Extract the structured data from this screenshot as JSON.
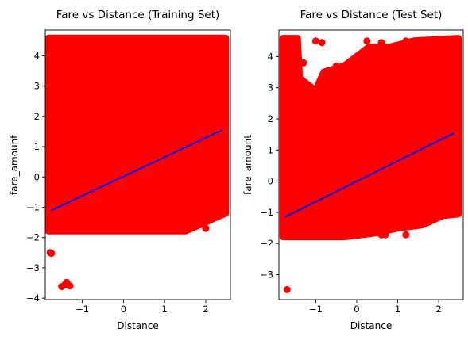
{
  "colors": {
    "scatter": "#ff0000",
    "line": "#0000ff",
    "axes": "#000000",
    "background": "#ffffff"
  },
  "chart_data": [
    {
      "type": "scatter",
      "title": "Fare vs Distance (Training Set)",
      "xlabel": "Distance",
      "ylabel": "fare_amount",
      "xlim": [
        -1.9,
        2.6
      ],
      "ylim": [
        -4.05,
        4.85
      ],
      "xticks": [
        -1,
        0,
        1,
        2
      ],
      "yticks": [
        -4,
        -3,
        -2,
        -1,
        0,
        1,
        2,
        3,
        4
      ],
      "grid": false,
      "series": [
        {
          "type": "scatter",
          "color": "#ff0000",
          "density": "dense cloud of points covering x from -1.8 to 2.45 and y from -1.75 to 4.55",
          "points": [
            [
              -1.78,
              -2.5
            ],
            [
              -1.75,
              -2.52
            ],
            [
              -1.5,
              -3.62
            ],
            [
              -1.42,
              -3.55
            ],
            [
              -1.38,
              -3.48
            ],
            [
              -1.3,
              -3.6
            ],
            [
              -1.8,
              4.5
            ],
            [
              -1.5,
              4.45
            ],
            [
              -1.2,
              4.5
            ],
            [
              -0.8,
              4.4
            ],
            [
              -0.5,
              4.5
            ],
            [
              0.0,
              4.5
            ],
            [
              0.5,
              4.45
            ],
            [
              1.0,
              4.5
            ],
            [
              1.5,
              4.5
            ],
            [
              2.0,
              4.5
            ],
            [
              2.4,
              4.45
            ],
            [
              -1.6,
              4.0
            ],
            [
              -1.0,
              3.9
            ],
            [
              -0.2,
              4.1
            ],
            [
              0.7,
              3.8
            ],
            [
              1.3,
              4.2
            ],
            [
              2.2,
              3.9
            ],
            [
              -1.7,
              -1.7
            ],
            [
              -1.2,
              -1.72
            ],
            [
              -0.6,
              -1.7
            ],
            [
              0.0,
              -1.65
            ],
            [
              0.6,
              -1.7
            ],
            [
              1.1,
              -1.7
            ],
            [
              1.5,
              -1.7
            ],
            [
              2.0,
              -1.7
            ],
            [
              1.8,
              -1.3
            ],
            [
              2.3,
              -1.1
            ],
            [
              2.4,
              -1.05
            ],
            [
              1.2,
              -1.35
            ],
            [
              -1.0,
              -1.5
            ],
            [
              -1.75,
              0.0
            ],
            [
              -1.5,
              1.0
            ],
            [
              -1.3,
              2.5
            ],
            [
              -1.1,
              -0.5
            ],
            [
              -0.8,
              1.8
            ],
            [
              -0.6,
              3.2
            ],
            [
              -0.3,
              0.5
            ],
            [
              0.0,
              -1.0
            ],
            [
              0.2,
              2.0
            ],
            [
              0.5,
              3.5
            ],
            [
              0.8,
              1.2
            ],
            [
              1.0,
              -0.3
            ],
            [
              1.3,
              2.8
            ],
            [
              1.6,
              0.8
            ],
            [
              1.9,
              3.3
            ],
            [
              2.1,
              1.9
            ],
            [
              2.3,
              0.2
            ],
            [
              2.45,
              2.6
            ]
          ]
        },
        {
          "type": "line",
          "color": "#0000ff",
          "points": [
            [
              -1.78,
              -1.12
            ],
            [
              2.4,
              1.55
            ]
          ]
        }
      ]
    },
    {
      "type": "scatter",
      "title": "Fare vs Distance (Test Set)",
      "xlabel": "Distance",
      "ylabel": "fare_amount",
      "xlim": [
        -1.9,
        2.6
      ],
      "ylim": [
        -3.8,
        4.85
      ],
      "xticks": [
        -1,
        0,
        1,
        2
      ],
      "yticks": [
        -3,
        -2,
        -1,
        0,
        1,
        2,
        3,
        4
      ],
      "grid": false,
      "series": [
        {
          "type": "scatter",
          "color": "#ff0000",
          "density": "dense lower-right wedge of points with sparser upper-left region",
          "points": [
            [
              -1.7,
              -3.48
            ],
            [
              -1.75,
              4.5
            ],
            [
              -1.65,
              4.5
            ],
            [
              -1.0,
              4.5
            ],
            [
              -0.85,
              4.45
            ],
            [
              0.25,
              4.5
            ],
            [
              0.6,
              4.45
            ],
            [
              1.2,
              4.5
            ],
            [
              1.9,
              4.5
            ],
            [
              2.2,
              4.5
            ],
            [
              2.35,
              4.4
            ],
            [
              -1.3,
              3.8
            ],
            [
              -0.5,
              3.7
            ],
            [
              0.0,
              4.0
            ],
            [
              0.4,
              3.9
            ],
            [
              0.9,
              3.6
            ],
            [
              1.5,
              4.0
            ],
            [
              -1.5,
              2.6
            ],
            [
              -1.2,
              1.8
            ],
            [
              -1.5,
              0.8
            ],
            [
              -0.7,
              2.9
            ],
            [
              -0.9,
              1.1
            ],
            [
              -1.7,
              -1.7
            ],
            [
              -1.3,
              -1.72
            ],
            [
              -0.8,
              -1.7
            ],
            [
              -0.2,
              -1.68
            ],
            [
              0.6,
              -1.72
            ],
            [
              0.7,
              -1.72
            ],
            [
              1.2,
              -1.72
            ],
            [
              1.0,
              -1.35
            ],
            [
              1.4,
              -1.2
            ],
            [
              1.8,
              -0.8
            ],
            [
              2.0,
              -0.9
            ],
            [
              2.2,
              -0.95
            ],
            [
              2.3,
              -1.0
            ],
            [
              1.85,
              -0.6
            ],
            [
              -0.4,
              0.2
            ],
            [
              0.0,
              0.9
            ],
            [
              0.3,
              -0.6
            ],
            [
              0.6,
              1.5
            ],
            [
              0.9,
              0.4
            ],
            [
              1.2,
              2.3
            ],
            [
              1.5,
              1.1
            ],
            [
              1.8,
              2.9
            ],
            [
              2.0,
              0.3
            ],
            [
              2.2,
              3.4
            ],
            [
              2.4,
              1.8
            ]
          ]
        },
        {
          "type": "line",
          "color": "#0000ff",
          "points": [
            [
              -1.75,
              -1.15
            ],
            [
              2.38,
              1.55
            ]
          ]
        }
      ]
    }
  ]
}
